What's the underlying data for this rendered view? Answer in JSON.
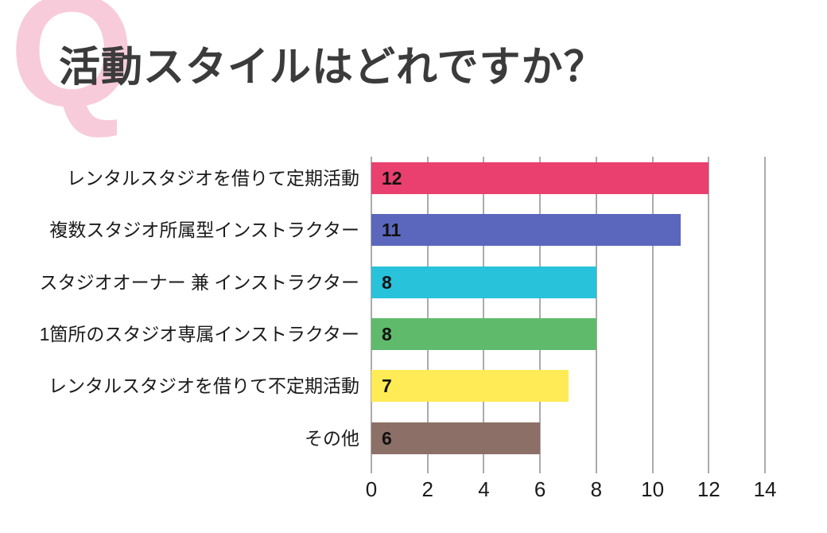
{
  "header": {
    "q_letter": "Q",
    "title": "活動スタイルはどれですか？"
  },
  "chart_data": {
    "type": "bar",
    "orientation": "horizontal",
    "title": "活動スタイルはどれですか？",
    "categories": [
      "レンタルスタジオを借りて定期活動",
      "複数スタジオ所属型インストラクター",
      "スタジオオーナー 兼 インストラクター",
      "1箇所のスタジオ専属インストラクター",
      "レンタルスタジオを借りて不定期活動",
      "その他"
    ],
    "values": [
      12,
      11,
      8,
      8,
      7,
      6
    ],
    "value_labels": [
      "12",
      "11",
      "8",
      "8",
      "7",
      "6"
    ],
    "bar_colors": [
      "#E9406F",
      "#5B67BD",
      "#28C2DB",
      "#5FBB6B",
      "#FFEB55",
      "#8C6F66"
    ],
    "x_ticks": [
      0,
      2,
      4,
      6,
      8,
      10,
      12,
      14
    ],
    "x_tick_labels": [
      "0",
      "2",
      "4",
      "6",
      "8",
      "10",
      "12",
      "14"
    ],
    "xlim": [
      0,
      15
    ],
    "grid": true,
    "legend": false,
    "xlabel": "",
    "ylabel": "",
    "colors": {
      "background": "#FFFFFF",
      "grid": "#ABABAB",
      "title_text": "#3B3B3B",
      "label_text": "#1B1B1B",
      "value_text": "#111111",
      "tick_text": "#1B1B1B",
      "q_letter": "#F8CBDA"
    }
  }
}
